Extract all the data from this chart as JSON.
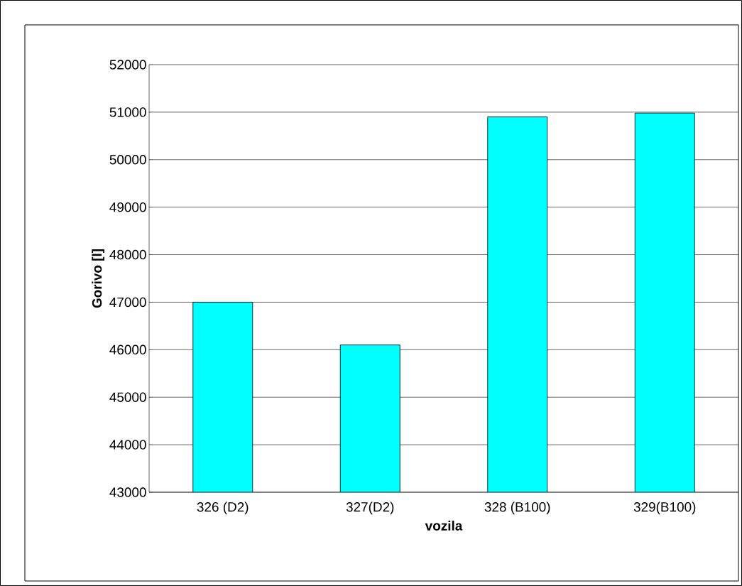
{
  "chart_data": {
    "type": "bar",
    "xlabel": "vozila",
    "ylabel": "Gorivo [l]",
    "categories": [
      "326  (D2)",
      "327(D2)",
      "328 (B100)",
      "329(B100)"
    ],
    "values": [
      47000,
      46100,
      50900,
      50980
    ],
    "color": "#00ffff",
    "ylim": [
      43000,
      52000
    ],
    "yticks": [
      43000,
      44000,
      45000,
      46000,
      47000,
      48000,
      49000,
      50000,
      51000,
      52000
    ],
    "grid": "y"
  }
}
